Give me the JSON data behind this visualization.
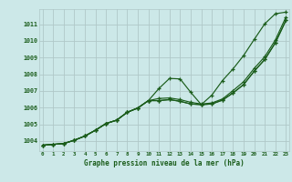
{
  "title": "Graphe pression niveau de la mer (hPa)",
  "bg_color": "#cce8e8",
  "grid_color": "#b0c8c8",
  "line_color": "#1a5c1a",
  "x_ticks": [
    0,
    1,
    2,
    3,
    4,
    5,
    6,
    7,
    8,
    9,
    10,
    11,
    12,
    13,
    14,
    15,
    16,
    17,
    18,
    19,
    20,
    21,
    22,
    23
  ],
  "y_ticks": [
    1004,
    1005,
    1006,
    1007,
    1008,
    1009,
    1010,
    1011
  ],
  "ylim": [
    1003.4,
    1011.9
  ],
  "xlim": [
    -0.3,
    23.3
  ],
  "line_main": [
    1003.75,
    1003.8,
    1003.85,
    1004.05,
    1004.3,
    1004.65,
    1005.05,
    1005.25,
    1005.72,
    1005.98,
    1006.42,
    1006.42,
    1006.48,
    1006.38,
    1006.22,
    1006.18,
    1006.22,
    1006.45,
    1006.88,
    1007.38,
    1008.18,
    1008.88,
    1009.88,
    1011.22
  ],
  "line_high": [
    1003.75,
    1003.8,
    1003.85,
    1004.05,
    1004.3,
    1004.65,
    1005.05,
    1005.25,
    1005.72,
    1005.98,
    1006.42,
    1007.15,
    1007.75,
    1007.72,
    1006.92,
    1006.18,
    1006.75,
    1007.62,
    1008.32,
    1009.12,
    1010.08,
    1011.02,
    1011.62,
    1011.72
  ],
  "line_low": [
    1003.75,
    1003.8,
    1003.85,
    1004.05,
    1004.3,
    1004.65,
    1005.05,
    1005.25,
    1005.72,
    1005.98,
    1006.42,
    1006.42,
    1006.48,
    1006.38,
    1006.22,
    1006.18,
    1006.22,
    1006.45,
    1006.88,
    1007.38,
    1008.18,
    1008.88,
    1009.88,
    1011.22
  ],
  "line_top": [
    1003.75,
    1003.8,
    1003.85,
    1004.05,
    1004.3,
    1004.65,
    1005.05,
    1005.25,
    1005.72,
    1005.98,
    1006.42,
    1006.55,
    1006.58,
    1006.48,
    1006.32,
    1006.22,
    1006.28,
    1006.52,
    1007.02,
    1007.55,
    1008.35,
    1009.05,
    1010.05,
    1011.42
  ]
}
